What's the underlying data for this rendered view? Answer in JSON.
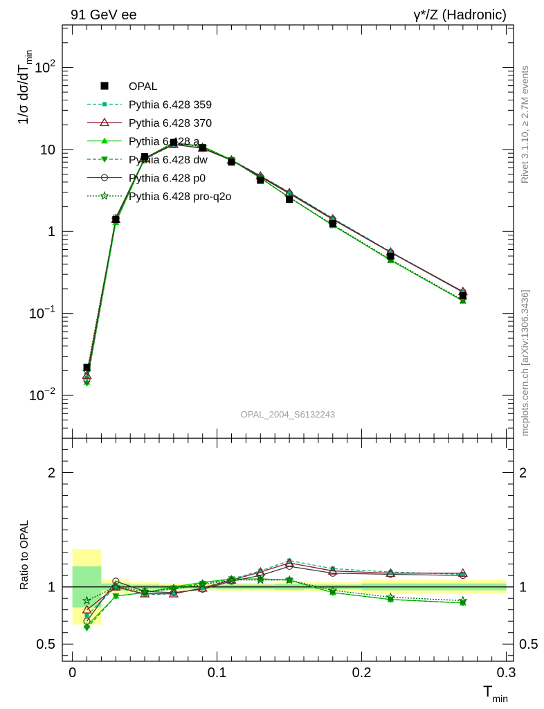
{
  "chart_data": {
    "type": "line",
    "title_left": "91 GeV ee",
    "title_right": "γ*/Z (Hadronic)",
    "ylabel_main": "1/σ dσ/dT",
    "ylabel_main_sub": "min",
    "ylabel_ratio": "Ratio to OPAL",
    "xlabel": "T",
    "xlabel_sub": "min",
    "analysis_label": "OPAL_2004_S6132243",
    "side_label_top": "Rivet 3.1.10, ≥ 2.7M events",
    "side_label_bottom": "mcplots.cern.ch [arXiv:1306.3436]",
    "xlim": [
      -0.007,
      0.305
    ],
    "ylim_main": [
      0.003,
      330
    ],
    "ylim_ratio": [
      0.35,
      2.3
    ],
    "x_ticks": [
      {
        "v": 0,
        "label": "0"
      },
      {
        "v": 0.1,
        "label": "0.1"
      },
      {
        "v": 0.2,
        "label": "0.2"
      },
      {
        "v": 0.3,
        "label": "0.3"
      }
    ],
    "y_ticks_main": [
      {
        "v": 0.01,
        "base": "10",
        "exp": "−2"
      },
      {
        "v": 0.1,
        "base": "10",
        "exp": "−1"
      },
      {
        "v": 1,
        "base": "1",
        "exp": ""
      },
      {
        "v": 10,
        "base": "10",
        "exp": ""
      },
      {
        "v": 100,
        "base": "10",
        "exp": "2"
      }
    ],
    "y_ticks_ratio": [
      {
        "v": 0.5,
        "label": "0.5"
      },
      {
        "v": 1,
        "label": "1"
      },
      {
        "v": 2,
        "label": "2"
      }
    ],
    "bins": [
      [
        0,
        0.02
      ],
      [
        0.02,
        0.04
      ],
      [
        0.04,
        0.06
      ],
      [
        0.06,
        0.08
      ],
      [
        0.08,
        0.1
      ],
      [
        0.1,
        0.12
      ],
      [
        0.12,
        0.14
      ],
      [
        0.14,
        0.16
      ],
      [
        0.16,
        0.2
      ],
      [
        0.2,
        0.24
      ],
      [
        0.24,
        0.3
      ]
    ],
    "x": [
      0.01,
      0.03,
      0.05,
      0.07,
      0.09,
      0.11,
      0.13,
      0.15,
      0.18,
      0.22,
      0.27
    ],
    "data": {
      "name": "OPAL",
      "values": [
        0.022,
        1.4,
        8.2,
        12.2,
        10.5,
        7.0,
        4.2,
        2.45,
        1.25,
        0.5,
        0.165
      ],
      "band_inner": [
        0.18,
        0.03,
        0.02,
        0.015,
        0.015,
        0.02,
        0.02,
        0.025,
        0.02,
        0.03,
        0.03
      ],
      "band_outer": [
        0.33,
        0.06,
        0.04,
        0.03,
        0.03,
        0.035,
        0.035,
        0.04,
        0.04,
        0.06,
        0.06
      ]
    },
    "series": [
      {
        "name": "Pythia 6.428 359",
        "color": "#00b482",
        "dash": "5,3",
        "marker": "square-small",
        "ratio": [
          0.75,
          1.0,
          0.93,
          0.94,
          0.99,
          1.07,
          1.14,
          1.23,
          1.16,
          1.13,
          1.11
        ]
      },
      {
        "name": "Pythia 6.428 370",
        "color": "#8c1422",
        "dash": "",
        "marker": "triangle-open",
        "ratio": [
          0.8,
          1.0,
          0.94,
          0.94,
          0.99,
          1.06,
          1.13,
          1.21,
          1.14,
          1.12,
          1.12
        ]
      },
      {
        "name": "Pythia 6.428 a",
        "color": "#00d200",
        "dash": "",
        "marker": "triangle-filled",
        "ratio": [
          0.66,
          0.92,
          0.95,
          1.0,
          1.04,
          1.07,
          1.07,
          1.06,
          0.95,
          0.89,
          0.86
        ]
      },
      {
        "name": "Pythia 6.428 dw",
        "color": "#00a000",
        "dash": "5,3",
        "marker": "triangle-down-filled",
        "ratio": [
          0.64,
          0.92,
          0.95,
          0.99,
          1.03,
          1.07,
          1.07,
          1.06,
          0.95,
          0.89,
          0.86
        ]
      },
      {
        "name": "Pythia 6.428 p0",
        "color": "#3c3c3c",
        "dash": "",
        "marker": "circle-open",
        "ratio": [
          0.7,
          1.05,
          0.96,
          0.95,
          0.98,
          1.05,
          1.1,
          1.18,
          1.12,
          1.11,
          1.1
        ]
      },
      {
        "name": "Pythia 6.428 pro-q2o",
        "color": "#006400",
        "dash": "2,2",
        "marker": "star",
        "ratio": [
          0.88,
          1.0,
          0.96,
          0.98,
          1.02,
          1.06,
          1.06,
          1.06,
          0.97,
          0.91,
          0.88
        ]
      }
    ]
  }
}
